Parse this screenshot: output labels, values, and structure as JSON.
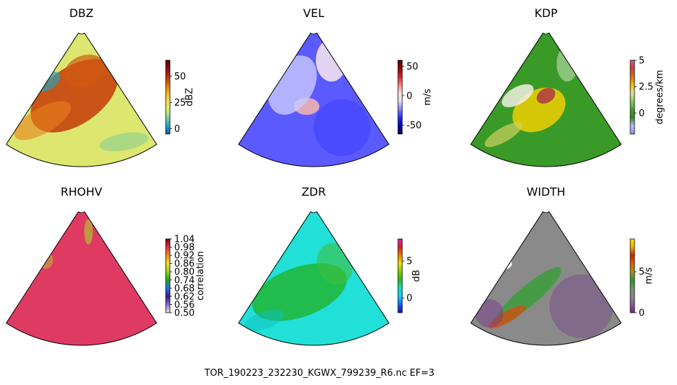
{
  "figure": {
    "caption": "TOR_190223_232230_KGWX_799239_R6.nc EF=3"
  },
  "chart_data": [
    {
      "type": "heatmap",
      "title": "DBZ",
      "colorbar": {
        "label": "dBZ",
        "range": [
          -5,
          65
        ],
        "ticks": [
          0,
          25,
          50
        ],
        "colors": [
          "#0f5aa8",
          "#1fa8c6",
          "#7fd6a0",
          "#d8f06a",
          "#f2e050",
          "#f5b418",
          "#e2720a",
          "#c42a08",
          "#8c0a0a",
          "#5a0000"
        ]
      },
      "description_fields": {
        "background": "#dde770"
      }
    },
    {
      "type": "heatmap",
      "title": "VEL",
      "colorbar": {
        "label": "m/s",
        "range": [
          -65,
          60
        ],
        "ticks": [
          -50,
          0,
          50
        ],
        "colors": [
          "#000040",
          "#0000b0",
          "#2828ff",
          "#8080ff",
          "#e0e0ff",
          "#ffe0e0",
          "#ff8080",
          "#e02020",
          "#9a0000",
          "#500000"
        ]
      },
      "description_fields": {
        "background": "#5a5aff"
      }
    },
    {
      "type": "heatmap",
      "title": "KDP",
      "colorbar": {
        "label": "degrees/km",
        "range": [
          -2,
          5.0
        ],
        "ticks": [
          0.0,
          2.5,
          5.0
        ],
        "colors": [
          "#8a8aff",
          "#c0c0ff",
          "#2e8b22",
          "#3fa32a",
          "#8fca60",
          "#e8e0a0",
          "#f0c000",
          "#e07010",
          "#c84040",
          "#d06080"
        ]
      },
      "description_fields": {
        "background": "#3a9a28"
      }
    },
    {
      "type": "heatmap",
      "title": "RHOHV",
      "colorbar": {
        "label": "correlation",
        "range": [
          0.5,
          1.04
        ],
        "ticks": [
          0.5,
          0.56,
          0.62,
          0.68,
          0.74,
          0.8,
          0.86,
          0.92,
          0.98,
          1.04
        ],
        "tick_labels": [
          "0.50",
          "0.56",
          "0.62",
          "0.68",
          "0.74",
          "0.80",
          "0.86",
          "0.92",
          "0.98",
          "1.04"
        ],
        "colors": [
          "#e8e8e8",
          "#8a6ad0",
          "#3a1a8a",
          "#2a6aff",
          "#1aa81a",
          "#9ad020",
          "#f0e020",
          "#f09010",
          "#e03050",
          "#800000"
        ]
      },
      "description_fields": {
        "background": "#df3a62"
      }
    },
    {
      "type": "heatmap",
      "title": "ZDR",
      "colorbar": {
        "label": "dB",
        "range": [
          -2,
          8
        ],
        "ticks": [
          0,
          5
        ],
        "colors": [
          "#1010b0",
          "#1060ff",
          "#10d0ff",
          "#10e0c0",
          "#20c020",
          "#80d000",
          "#f0e000",
          "#f08000",
          "#e02020",
          "#e020c0"
        ]
      },
      "description_fields": {
        "background": "#20e0d8"
      }
    },
    {
      "type": "heatmap",
      "title": "WIDTH",
      "colorbar": {
        "label": "m/s",
        "range": [
          0,
          9
        ],
        "ticks": [
          0,
          5
        ],
        "colors": [
          "#7a2a8a",
          "#8a5a9a",
          "#8a8a8a",
          "#6a9a6a",
          "#2a9a2a",
          "#b09010",
          "#e06000",
          "#d02000",
          "#f0b000",
          "#ffe000"
        ]
      },
      "description_fields": {
        "background": "#8a8a8a"
      }
    }
  ]
}
